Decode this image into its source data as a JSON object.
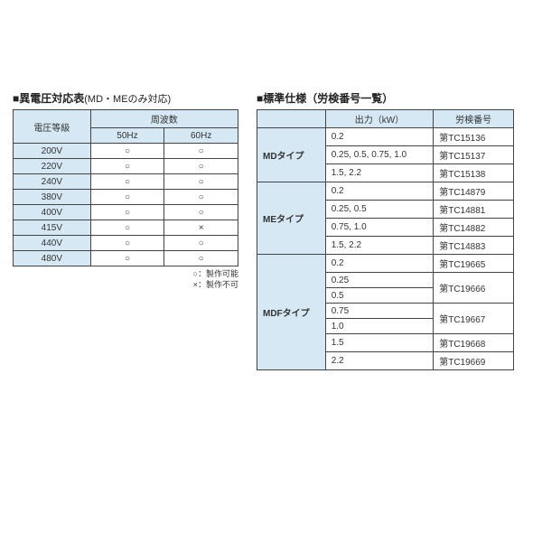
{
  "left": {
    "title_prefix": "■",
    "title_main": "異電圧対応表",
    "title_note": "(MD・MEのみ対応)",
    "headers": {
      "voltage_class": "電圧等級",
      "frequency": "周波数",
      "f50": "50Hz",
      "f60": "60Hz"
    },
    "rows": [
      {
        "voltage": "200V",
        "f50": "○",
        "f60": "○"
      },
      {
        "voltage": "220V",
        "f50": "○",
        "f60": "○"
      },
      {
        "voltage": "240V",
        "f50": "○",
        "f60": "○"
      },
      {
        "voltage": "380V",
        "f50": "○",
        "f60": "○"
      },
      {
        "voltage": "400V",
        "f50": "○",
        "f60": "○"
      },
      {
        "voltage": "415V",
        "f50": "○",
        "f60": "×"
      },
      {
        "voltage": "440V",
        "f50": "○",
        "f60": "○"
      },
      {
        "voltage": "480V",
        "f50": "○",
        "f60": "○"
      }
    ],
    "legend_ok": "○：製作可能",
    "legend_ng": "×：製作不可"
  },
  "right": {
    "title_prefix": "■",
    "title_main": "標準仕様（労検番号一覧）",
    "headers": {
      "blank": "",
      "output": "出力（kW）",
      "cert": "労検番号"
    },
    "groups": [
      {
        "type": "MDタイプ",
        "rows": [
          {
            "output": "0.2",
            "cert": "第TC15136"
          },
          {
            "output": "0.25, 0.5, 0.75, 1.0",
            "cert": "第TC15137"
          },
          {
            "output": "1.5, 2.2",
            "cert": "第TC15138"
          }
        ]
      },
      {
        "type": "MEタイプ",
        "rows": [
          {
            "output": "0.2",
            "cert": "第TC14879"
          },
          {
            "output": "0.25, 0.5",
            "cert": "第TC14881"
          },
          {
            "output": "0.75, 1.0",
            "cert": "第TC14882"
          },
          {
            "output": "1.5, 2.2",
            "cert": "第TC14883"
          }
        ]
      }
    ],
    "mdf": {
      "type": "MDFタイプ",
      "rows": [
        {
          "output": "0.2",
          "cert": "第TC19665",
          "cert_span": 1
        },
        {
          "output": "0.25",
          "cert": "第TC19666",
          "cert_span": 2
        },
        {
          "output": "0.5"
        },
        {
          "output": "0.75",
          "cert": "第TC19667",
          "cert_span": 2
        },
        {
          "output": "1.0"
        },
        {
          "output": "1.5",
          "cert": "第TC19668",
          "cert_span": 1
        },
        {
          "output": "2.2",
          "cert": "第TC19669",
          "cert_span": 1
        }
      ]
    }
  },
  "colors": {
    "header_bg": "#d5e8f4",
    "border": "#444444",
    "text": "#333333"
  }
}
